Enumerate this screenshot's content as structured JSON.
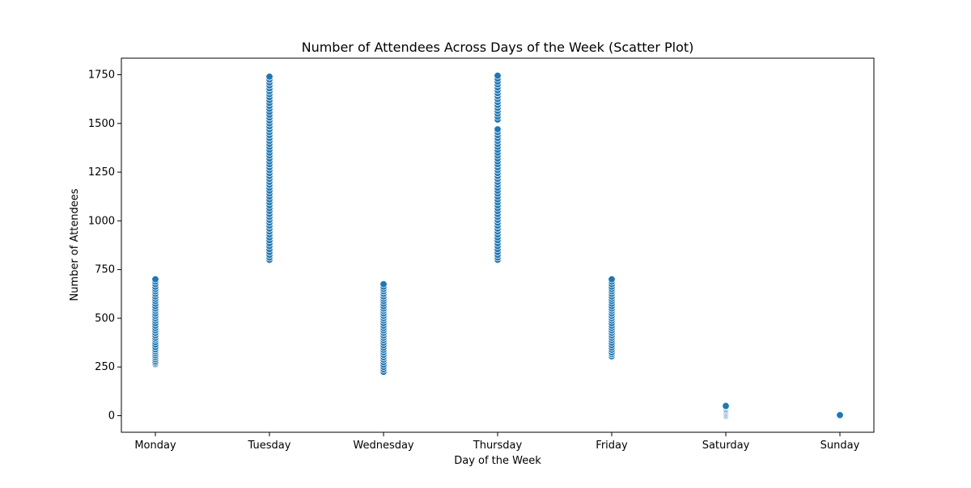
{
  "chart_data": {
    "type": "scatter",
    "title": "Number of Attendees Across Days of the Week (Scatter Plot)",
    "xlabel": "Day of the Week",
    "ylabel": "Number of Attendees",
    "categories": [
      "Monday",
      "Tuesday",
      "Wednesday",
      "Thursday",
      "Friday",
      "Saturday",
      "Sunday"
    ],
    "y_ticks": [
      0,
      250,
      500,
      750,
      1000,
      1250,
      1500,
      1750
    ],
    "y_tick_labels": [
      "0",
      "250",
      "500",
      "750",
      "1000",
      "1250",
      "1500",
      "1750"
    ],
    "ylim": [
      -85,
      1835
    ],
    "grid": false,
    "legend": "none",
    "marker_color": "#1f77b4",
    "marker_edge_color": "#ffffff",
    "series": [
      {
        "values": [
          [
            0,
            265
          ],
          [
            0,
            272
          ],
          [
            0,
            280
          ],
          [
            0,
            290
          ],
          [
            0,
            300
          ],
          [
            0,
            310
          ],
          [
            0,
            320
          ],
          [
            0,
            330
          ],
          [
            0,
            340
          ],
          [
            0,
            352
          ],
          [
            0,
            365
          ],
          [
            0,
            378
          ],
          [
            0,
            390
          ],
          [
            0,
            400
          ],
          [
            0,
            412
          ],
          [
            0,
            425
          ],
          [
            0,
            438
          ],
          [
            0,
            450
          ],
          [
            0,
            462
          ],
          [
            0,
            475
          ],
          [
            0,
            488
          ],
          [
            0,
            500
          ],
          [
            0,
            512
          ],
          [
            0,
            525
          ],
          [
            0,
            538
          ],
          [
            0,
            550
          ],
          [
            0,
            562
          ],
          [
            0,
            575
          ],
          [
            0,
            588
          ],
          [
            0,
            600
          ],
          [
            0,
            612
          ],
          [
            0,
            625
          ],
          [
            0,
            638
          ],
          [
            0,
            650
          ],
          [
            0,
            662
          ],
          [
            0,
            675
          ],
          [
            0,
            688
          ],
          [
            0,
            700
          ],
          [
            1,
            800
          ],
          [
            1,
            812
          ],
          [
            1,
            825
          ],
          [
            1,
            840
          ],
          [
            1,
            855
          ],
          [
            1,
            870
          ],
          [
            1,
            885
          ],
          [
            1,
            900
          ],
          [
            1,
            915
          ],
          [
            1,
            930
          ],
          [
            1,
            945
          ],
          [
            1,
            960
          ],
          [
            1,
            975
          ],
          [
            1,
            990
          ],
          [
            1,
            1005
          ],
          [
            1,
            1020
          ],
          [
            1,
            1035
          ],
          [
            1,
            1050
          ],
          [
            1,
            1065
          ],
          [
            1,
            1080
          ],
          [
            1,
            1095
          ],
          [
            1,
            1110
          ],
          [
            1,
            1125
          ],
          [
            1,
            1140
          ],
          [
            1,
            1155
          ],
          [
            1,
            1170
          ],
          [
            1,
            1185
          ],
          [
            1,
            1200
          ],
          [
            1,
            1215
          ],
          [
            1,
            1230
          ],
          [
            1,
            1245
          ],
          [
            1,
            1260
          ],
          [
            1,
            1275
          ],
          [
            1,
            1290
          ],
          [
            1,
            1305
          ],
          [
            1,
            1320
          ],
          [
            1,
            1335
          ],
          [
            1,
            1350
          ],
          [
            1,
            1365
          ],
          [
            1,
            1380
          ],
          [
            1,
            1395
          ],
          [
            1,
            1410
          ],
          [
            1,
            1425
          ],
          [
            1,
            1440
          ],
          [
            1,
            1455
          ],
          [
            1,
            1470
          ],
          [
            1,
            1485
          ],
          [
            1,
            1500
          ],
          [
            1,
            1515
          ],
          [
            1,
            1530
          ],
          [
            1,
            1545
          ],
          [
            1,
            1560
          ],
          [
            1,
            1575
          ],
          [
            1,
            1590
          ],
          [
            1,
            1605
          ],
          [
            1,
            1620
          ],
          [
            1,
            1635
          ],
          [
            1,
            1650
          ],
          [
            1,
            1665
          ],
          [
            1,
            1680
          ],
          [
            1,
            1695
          ],
          [
            1,
            1710
          ],
          [
            1,
            1725
          ],
          [
            1,
            1740
          ],
          [
            2,
            225
          ],
          [
            2,
            238
          ],
          [
            2,
            250
          ],
          [
            2,
            262
          ],
          [
            2,
            275
          ],
          [
            2,
            288
          ],
          [
            2,
            300
          ],
          [
            2,
            312
          ],
          [
            2,
            325
          ],
          [
            2,
            338
          ],
          [
            2,
            350
          ],
          [
            2,
            362
          ],
          [
            2,
            375
          ],
          [
            2,
            388
          ],
          [
            2,
            400
          ],
          [
            2,
            412
          ],
          [
            2,
            425
          ],
          [
            2,
            438
          ],
          [
            2,
            450
          ],
          [
            2,
            462
          ],
          [
            2,
            475
          ],
          [
            2,
            488
          ],
          [
            2,
            500
          ],
          [
            2,
            512
          ],
          [
            2,
            525
          ],
          [
            2,
            538
          ],
          [
            2,
            550
          ],
          [
            2,
            562
          ],
          [
            2,
            575
          ],
          [
            2,
            588
          ],
          [
            2,
            600
          ],
          [
            2,
            612
          ],
          [
            2,
            625
          ],
          [
            2,
            638
          ],
          [
            2,
            650
          ],
          [
            2,
            662
          ],
          [
            2,
            675
          ],
          [
            3,
            800
          ],
          [
            3,
            812
          ],
          [
            3,
            825
          ],
          [
            3,
            840
          ],
          [
            3,
            855
          ],
          [
            3,
            870
          ],
          [
            3,
            885
          ],
          [
            3,
            900
          ],
          [
            3,
            915
          ],
          [
            3,
            930
          ],
          [
            3,
            945
          ],
          [
            3,
            960
          ],
          [
            3,
            975
          ],
          [
            3,
            990
          ],
          [
            3,
            1005
          ],
          [
            3,
            1020
          ],
          [
            3,
            1035
          ],
          [
            3,
            1050
          ],
          [
            3,
            1065
          ],
          [
            3,
            1080
          ],
          [
            3,
            1095
          ],
          [
            3,
            1110
          ],
          [
            3,
            1125
          ],
          [
            3,
            1140
          ],
          [
            3,
            1155
          ],
          [
            3,
            1170
          ],
          [
            3,
            1185
          ],
          [
            3,
            1200
          ],
          [
            3,
            1215
          ],
          [
            3,
            1230
          ],
          [
            3,
            1245
          ],
          [
            3,
            1260
          ],
          [
            3,
            1275
          ],
          [
            3,
            1290
          ],
          [
            3,
            1305
          ],
          [
            3,
            1320
          ],
          [
            3,
            1335
          ],
          [
            3,
            1350
          ],
          [
            3,
            1365
          ],
          [
            3,
            1380
          ],
          [
            3,
            1395
          ],
          [
            3,
            1410
          ],
          [
            3,
            1425
          ],
          [
            3,
            1440
          ],
          [
            3,
            1455
          ],
          [
            3,
            1470
          ],
          [
            3,
            1520
          ],
          [
            3,
            1535
          ],
          [
            3,
            1550
          ],
          [
            3,
            1565
          ],
          [
            3,
            1580
          ],
          [
            3,
            1595
          ],
          [
            3,
            1610
          ],
          [
            3,
            1625
          ],
          [
            3,
            1640
          ],
          [
            3,
            1655
          ],
          [
            3,
            1670
          ],
          [
            3,
            1685
          ],
          [
            3,
            1700
          ],
          [
            3,
            1715
          ],
          [
            3,
            1730
          ],
          [
            3,
            1745
          ],
          [
            4,
            305
          ],
          [
            4,
            315
          ],
          [
            4,
            325
          ],
          [
            4,
            338
          ],
          [
            4,
            350
          ],
          [
            4,
            362
          ],
          [
            4,
            375
          ],
          [
            4,
            388
          ],
          [
            4,
            400
          ],
          [
            4,
            412
          ],
          [
            4,
            425
          ],
          [
            4,
            438
          ],
          [
            4,
            450
          ],
          [
            4,
            462
          ],
          [
            4,
            475
          ],
          [
            4,
            488
          ],
          [
            4,
            500
          ],
          [
            4,
            512
          ],
          [
            4,
            525
          ],
          [
            4,
            538
          ],
          [
            4,
            550
          ],
          [
            4,
            562
          ],
          [
            4,
            575
          ],
          [
            4,
            588
          ],
          [
            4,
            600
          ],
          [
            4,
            612
          ],
          [
            4,
            625
          ],
          [
            4,
            638
          ],
          [
            4,
            650
          ],
          [
            4,
            662
          ],
          [
            4,
            675
          ],
          [
            4,
            688
          ],
          [
            4,
            700
          ],
          [
            5,
            0
          ],
          [
            5,
            5
          ],
          [
            5,
            10
          ],
          [
            5,
            15
          ],
          [
            5,
            20
          ],
          [
            5,
            25
          ],
          [
            5,
            30
          ],
          [
            5,
            35
          ],
          [
            5,
            40
          ],
          [
            5,
            45
          ],
          [
            5,
            50
          ],
          [
            6,
            3
          ]
        ]
      }
    ]
  }
}
